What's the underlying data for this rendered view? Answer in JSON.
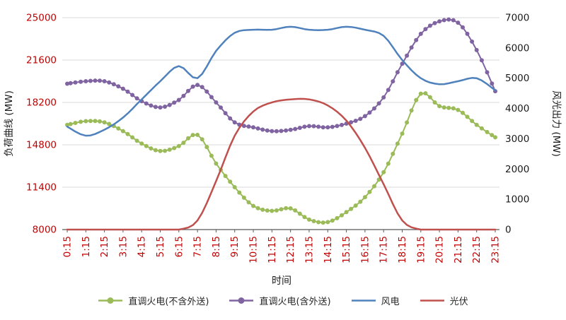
{
  "chart_data": {
    "type": "line",
    "title": "",
    "xlabel": "时间",
    "legend_position": "bottom",
    "grid": true,
    "left_axis": {
      "label": "负荷曲线 (MW)",
      "min": 8000,
      "max": 25000,
      "ticks": [
        8000,
        11400,
        14800,
        18200,
        21600,
        25000
      ]
    },
    "right_axis": {
      "label": "风光出力 (MW)",
      "min": 0,
      "max": 7000,
      "ticks": [
        0,
        1000,
        2000,
        3000,
        4000,
        5000,
        6000,
        7000
      ]
    },
    "categories": [
      "0:15",
      "1:15",
      "2:15",
      "3:15",
      "4:15",
      "5:15",
      "6:15",
      "7:15",
      "8:15",
      "9:15",
      "10:15",
      "11:15",
      "12:15",
      "13:15",
      "14:15",
      "15:15",
      "16:15",
      "17:15",
      "18:15",
      "19:15",
      "20:15",
      "21:15",
      "22:15",
      "23:15"
    ],
    "series": [
      {
        "name": "直调火电(不含外送)",
        "axis": "left",
        "color": "#9bbb59",
        "marker": true,
        "values": [
          16400,
          16700,
          16600,
          15900,
          14900,
          14300,
          14700,
          15600,
          13300,
          11400,
          9900,
          9500,
          9700,
          8800,
          8600,
          9400,
          10600,
          12600,
          15700,
          18900,
          17900,
          17600,
          16400,
          15400
        ]
      },
      {
        "name": "直调火电(含外送)",
        "axis": "left",
        "color": "#8064a2",
        "marker": true,
        "values": [
          19700,
          19900,
          19900,
          19300,
          18300,
          17800,
          18400,
          19600,
          18200,
          16600,
          16200,
          15900,
          16000,
          16300,
          16200,
          16500,
          17100,
          18600,
          21300,
          23700,
          24700,
          24600,
          22400,
          19100
        ]
      },
      {
        "name": "风电",
        "axis": "right",
        "color": "#4f81bd",
        "marker": false,
        "values": [
          3400,
          3100,
          3300,
          3700,
          4300,
          4900,
          5400,
          5000,
          5900,
          6500,
          6600,
          6600,
          6700,
          6600,
          6600,
          6700,
          6600,
          6400,
          5600,
          5000,
          4800,
          4900,
          5000,
          4600
        ]
      },
      {
        "name": "光伏",
        "axis": "right",
        "color": "#c0504d",
        "marker": false,
        "values": [
          0,
          0,
          0,
          0,
          0,
          0,
          0,
          300,
          1600,
          3100,
          3900,
          4200,
          4300,
          4300,
          4100,
          3600,
          2700,
          1500,
          300,
          0,
          0,
          0,
          0,
          0
        ]
      }
    ]
  },
  "colors": {
    "tick_label_left": "#c00000",
    "tick_label_x": "#c00000",
    "tick_label_right": "#1a1a1a",
    "axis_title": "#1a1a1a",
    "grid": "#d9d9d9",
    "axis_line": "#595959",
    "background": "#ffffff"
  }
}
